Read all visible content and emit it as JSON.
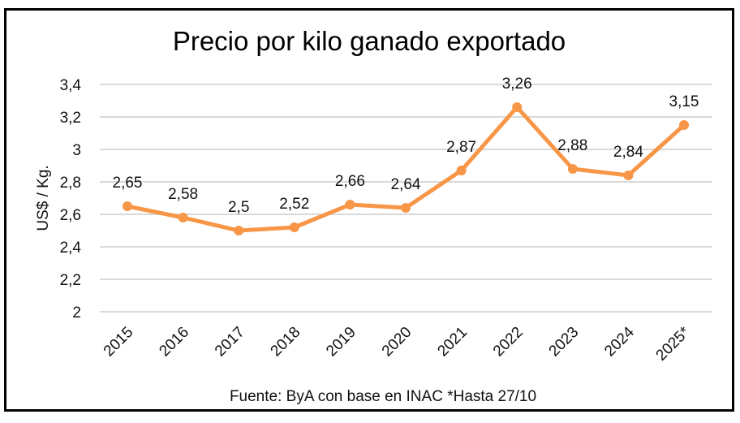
{
  "chart_data": {
    "type": "line",
    "title": "Precio por kilo ganado exportado",
    "xlabel": "",
    "ylabel": "US$ / Kg.",
    "categories": [
      "2015",
      "2016",
      "2017",
      "2018",
      "2019",
      "2020",
      "2021",
      "2022",
      "2023",
      "2024",
      "2025*"
    ],
    "series": [
      {
        "name": "Precio por kilo",
        "values": [
          2.65,
          2.58,
          2.5,
          2.52,
          2.66,
          2.64,
          2.87,
          3.26,
          2.88,
          2.84,
          3.15
        ],
        "labels": [
          "2,65",
          "2,58",
          "2,5",
          "2,52",
          "2,66",
          "2,64",
          "2,87",
          "3,26",
          "2,88",
          "2,84",
          "3,15"
        ],
        "color": "#F79646"
      }
    ],
    "ylim": [
      2,
      3.4
    ],
    "yticks": [
      2,
      2.2,
      2.4,
      2.6,
      2.8,
      3,
      3.2,
      3.4
    ],
    "ytick_labels": [
      "2",
      "2,2",
      "2,4",
      "2,6",
      "2,8",
      "3",
      "3,2",
      "3,4"
    ],
    "grid": true,
    "gridline_color": "#D9D9D9",
    "legend": "none",
    "source_note": "Fuente: ByA con base en INAC *Hasta 27/10"
  }
}
